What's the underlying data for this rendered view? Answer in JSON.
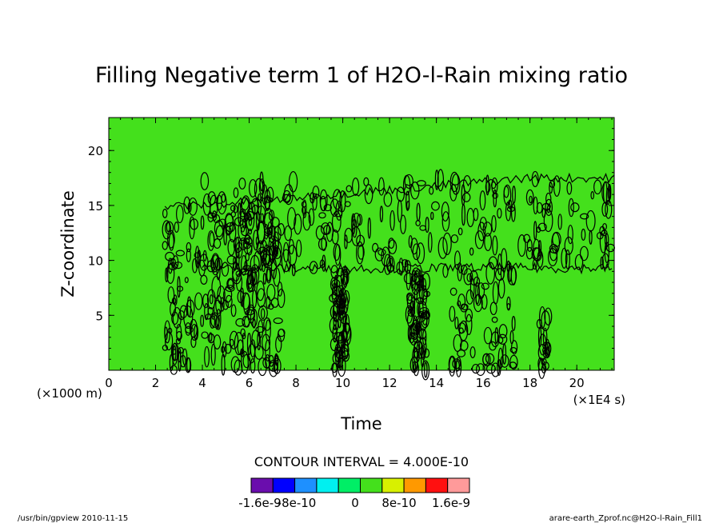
{
  "chart_data": {
    "type": "heatmap",
    "title": "Filling Negative term 1 of H2O-l-Rain mixing ratio",
    "xlabel": "Time",
    "ylabel": "Z-coordinate",
    "x_unit_left": "(×1000 m)",
    "x_unit_right": "(×1E4 s)",
    "xlim": [
      0,
      21.6
    ],
    "ylim": [
      0,
      23
    ],
    "x_ticks": [
      "0",
      "2",
      "4",
      "6",
      "8",
      "10",
      "12",
      "14",
      "16",
      "18",
      "20"
    ],
    "x_tick_values": [
      0,
      2,
      4,
      6,
      8,
      10,
      12,
      14,
      16,
      18,
      20
    ],
    "y_ticks": [
      "5",
      "10",
      "15",
      "20"
    ],
    "y_tick_values": [
      5,
      10,
      15,
      20
    ],
    "background_color": "#44e01c",
    "contour_color": "#000000",
    "contour_interval": "CONTOUR INTERVAL = 4.000E-10",
    "colorbar": {
      "colors": [
        "#6a0dad",
        "#0000ff",
        "#1e90ff",
        "#00f0f0",
        "#00ee66",
        "#44e01c",
        "#d8f000",
        "#ff9900",
        "#ff1010",
        "#ff9a9a"
      ],
      "labels": [
        "-1.6e-9",
        "-8e-10",
        "0",
        "8e-10",
        "1.6e-9"
      ],
      "label_values": [
        -1.6e-09,
        -8e-10,
        0,
        8e-10,
        1.6e-09
      ]
    },
    "activity_regions": [
      {
        "x": [
          2.4,
          7.4
        ],
        "y": [
          0,
          15.5
        ],
        "density": "high"
      },
      {
        "x": [
          4,
          21.6
        ],
        "y": [
          9,
          17.5
        ],
        "density": "high"
      },
      {
        "x": [
          9.6,
          10.2
        ],
        "y": [
          0,
          9
        ],
        "density": "medium"
      },
      {
        "x": [
          12.8,
          13.6
        ],
        "y": [
          0,
          9
        ],
        "density": "medium"
      },
      {
        "x": [
          14.6,
          17.4
        ],
        "y": [
          0,
          9
        ],
        "density": "medium"
      },
      {
        "x": [
          18.4,
          18.8
        ],
        "y": [
          0,
          5
        ],
        "density": "low"
      }
    ]
  },
  "footer": {
    "left": "/usr/bin/gpview  2010-11-15",
    "right": "arare-earth_Zprof.nc@H2O-l-Rain_Fill1"
  }
}
